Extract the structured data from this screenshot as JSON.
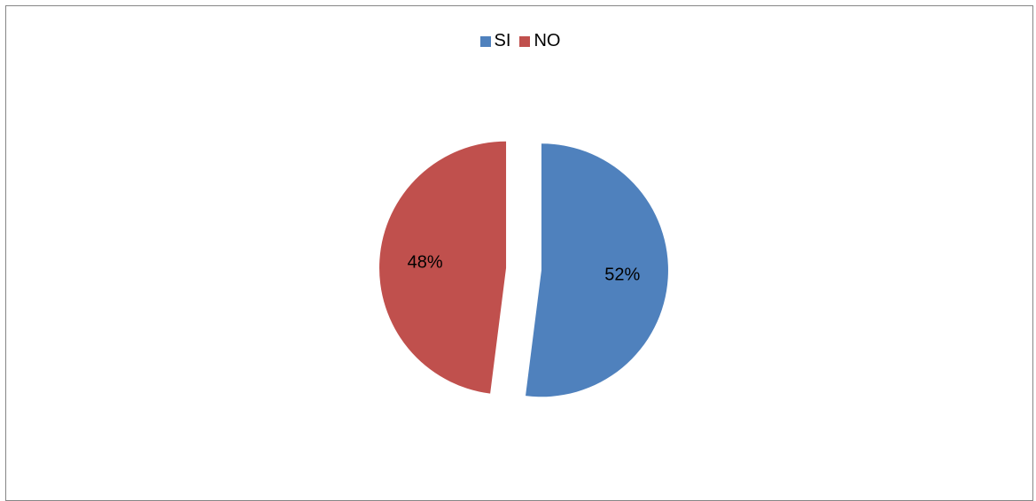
{
  "chart_data": {
    "type": "pie",
    "title": "",
    "legend_position": "top",
    "slices": [
      {
        "name": "SI",
        "value": 52,
        "label": "52%",
        "color": "#4F81BD"
      },
      {
        "name": "NO",
        "value": 48,
        "label": "48%",
        "color": "#C0504D"
      }
    ]
  }
}
